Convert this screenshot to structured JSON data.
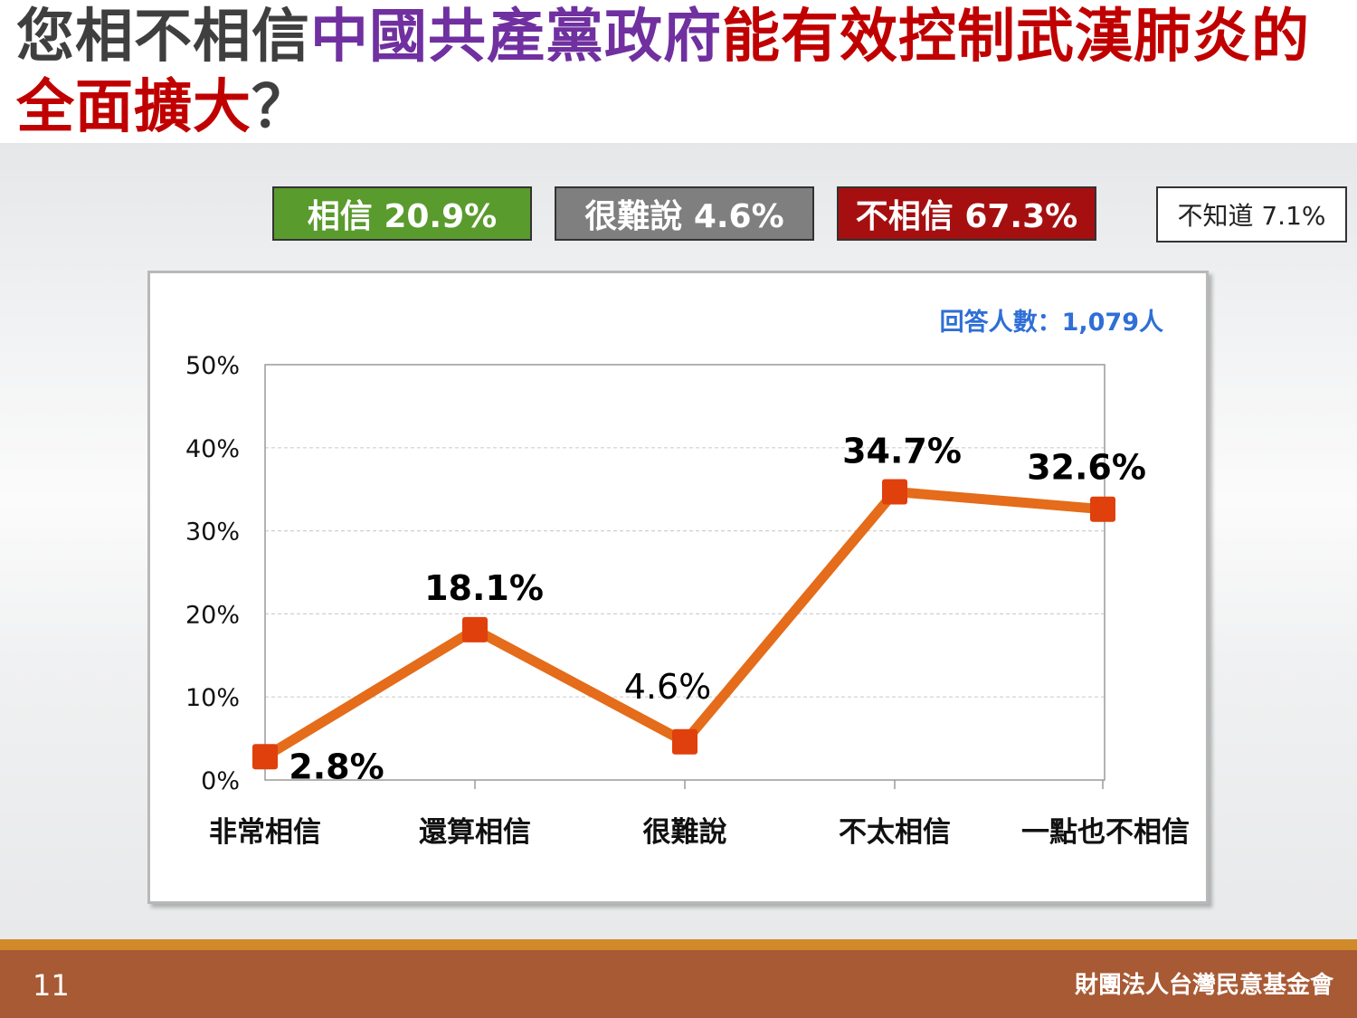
{
  "title": {
    "part1": "您相不相信",
    "part2": "中國共產黨政府",
    "part3": "能有效控制武漢肺炎的",
    "part4": "全面擴大",
    "part5": "？"
  },
  "summary": {
    "believe": "相信 20.9%",
    "hard_to_say": "很難說 4.6%",
    "not_believe": "不相信 67.3%",
    "dont_know": "不知道 7.1%"
  },
  "colors": {
    "believe": "#5a9b2d",
    "hard_to_say": "#7f7f7f",
    "not_believe": "#a50f10",
    "line": "#e46c1a",
    "marker": "#e0400c",
    "respondents": "#2f6fd6"
  },
  "respondents": "回答人數：1,079人",
  "chart_data": {
    "type": "line",
    "categories": [
      "非常相信",
      "還算相信",
      "很難說",
      "不太相信",
      "一點也不相信"
    ],
    "values": [
      2.8,
      18.1,
      4.6,
      34.7,
      32.6
    ],
    "data_labels": [
      "2.8%",
      "18.1%",
      "4.6%",
      "34.7%",
      "32.6%"
    ],
    "y_ticks": [
      "0%",
      "10%",
      "20%",
      "30%",
      "40%",
      "50%"
    ],
    "ylim": [
      0,
      50
    ],
    "grid": true,
    "legend": "none"
  },
  "footer": {
    "page_number": "11",
    "organization": "財團法人台灣民意基金會"
  }
}
